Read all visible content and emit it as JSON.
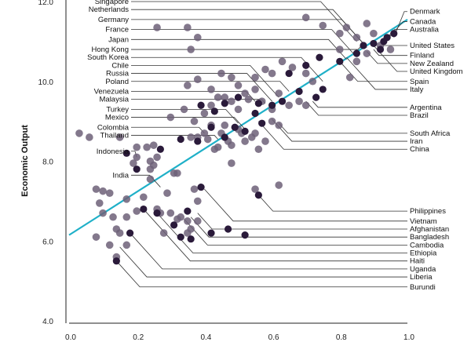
{
  "chart_data": {
    "type": "scatter",
    "title": "",
    "xlabel": "",
    "ylabel": "Economic Output",
    "xlim": [
      0,
      1
    ],
    "ylim": [
      4,
      12
    ],
    "x_ticks": [
      "0.0",
      "0.2",
      "0.4",
      "0.6",
      "0.8",
      "1.0"
    ],
    "y_ticks": [
      "4.0",
      "6.0",
      "8.0",
      "10.0",
      "12.0"
    ],
    "grid": false,
    "colors": {
      "highlight": "#2a1a3a",
      "other": "#6d6078",
      "trend": "#1fb0c8",
      "leader": "#333333"
    },
    "trend_line": {
      "x0": 0,
      "y0": 6.15,
      "x1": 1,
      "y1": 11.55
    },
    "points_other": [
      [
        0.08,
        7.3
      ],
      [
        0.1,
        7.25
      ],
      [
        0.12,
        7.2
      ],
      [
        0.09,
        6.95
      ],
      [
        0.1,
        6.7
      ],
      [
        0.13,
        6.6
      ],
      [
        0.14,
        6.3
      ],
      [
        0.15,
        6.2
      ],
      [
        0.12,
        5.9
      ],
      [
        0.08,
        6.1
      ],
      [
        0.14,
        5.6
      ],
      [
        0.17,
        7.05
      ],
      [
        0.17,
        6.6
      ],
      [
        0.2,
        6.75
      ],
      [
        0.17,
        5.9
      ],
      [
        0.2,
        8.35
      ],
      [
        0.2,
        8.1
      ],
      [
        0.19,
        7.95
      ],
      [
        0.23,
        8.35
      ],
      [
        0.24,
        8.0
      ],
      [
        0.25,
        8.4
      ],
      [
        0.25,
        7.9
      ],
      [
        0.24,
        7.55
      ],
      [
        0.26,
        8.1
      ],
      [
        0.22,
        7.1
      ],
      [
        0.24,
        7.8
      ],
      [
        0.26,
        6.8
      ],
      [
        0.28,
        6.2
      ],
      [
        0.27,
        6.7
      ],
      [
        0.3,
        6.7
      ],
      [
        0.32,
        6.55
      ],
      [
        0.33,
        6.6
      ],
      [
        0.35,
        6.5
      ],
      [
        0.35,
        6.2
      ],
      [
        0.36,
        6.3
      ],
      [
        0.38,
        6.5
      ],
      [
        0.38,
        7.0
      ],
      [
        0.37,
        7.3
      ],
      [
        0.32,
        7.7
      ],
      [
        0.31,
        7.7
      ],
      [
        0.29,
        7.2
      ],
      [
        0.36,
        8.6
      ],
      [
        0.38,
        8.6
      ],
      [
        0.4,
        8.7
      ],
      [
        0.41,
        8.55
      ],
      [
        0.42,
        8.9
      ],
      [
        0.43,
        8.3
      ],
      [
        0.44,
        8.35
      ],
      [
        0.45,
        8.7
      ],
      [
        0.46,
        8.9
      ],
      [
        0.47,
        8.5
      ],
      [
        0.48,
        8.4
      ],
      [
        0.5,
        8.8
      ],
      [
        0.51,
        8.7
      ],
      [
        0.52,
        8.5
      ],
      [
        0.54,
        8.6
      ],
      [
        0.55,
        8.7
      ],
      [
        0.56,
        8.3
      ],
      [
        0.58,
        8.5
      ],
      [
        0.6,
        9.0
      ],
      [
        0.62,
        8.9
      ],
      [
        0.3,
        9.1
      ],
      [
        0.34,
        9.3
      ],
      [
        0.37,
        9.0
      ],
      [
        0.4,
        9.2
      ],
      [
        0.42,
        9.4
      ],
      [
        0.44,
        9.6
      ],
      [
        0.46,
        9.6
      ],
      [
        0.48,
        9.5
      ],
      [
        0.5,
        9.3
      ],
      [
        0.53,
        9.55
      ],
      [
        0.55,
        9.8
      ],
      [
        0.57,
        9.5
      ],
      [
        0.6,
        9.3
      ],
      [
        0.62,
        9.7
      ],
      [
        0.65,
        9.4
      ],
      [
        0.68,
        9.5
      ],
      [
        0.7,
        9.4
      ],
      [
        0.35,
        9.9
      ],
      [
        0.38,
        10.05
      ],
      [
        0.42,
        9.8
      ],
      [
        0.45,
        10.2
      ],
      [
        0.48,
        10.1
      ],
      [
        0.5,
        9.9
      ],
      [
        0.52,
        9.7
      ],
      [
        0.55,
        10.1
      ],
      [
        0.58,
        10.3
      ],
      [
        0.6,
        10.2
      ],
      [
        0.63,
        10.5
      ],
      [
        0.66,
        10.35
      ],
      [
        0.7,
        10.2
      ],
      [
        0.72,
        10.0
      ],
      [
        0.26,
        11.35
      ],
      [
        0.35,
        11.35
      ],
      [
        0.38,
        11.1
      ],
      [
        0.36,
        10.8
      ],
      [
        0.7,
        11.6
      ],
      [
        0.75,
        11.4
      ],
      [
        0.8,
        11.2
      ],
      [
        0.82,
        11.35
      ],
      [
        0.85,
        11.1
      ],
      [
        0.88,
        11.45
      ],
      [
        0.9,
        11.2
      ],
      [
        0.8,
        10.8
      ],
      [
        0.83,
        10.1
      ],
      [
        0.85,
        10.5
      ],
      [
        0.88,
        10.7
      ],
      [
        0.92,
        10.9
      ],
      [
        0.95,
        10.8
      ],
      [
        0.03,
        8.7
      ],
      [
        0.06,
        8.6
      ],
      [
        0.15,
        8.6
      ],
      [
        0.48,
        7.95
      ],
      [
        0.62,
        7.4
      ],
      [
        0.55,
        7.3
      ]
    ],
    "points_highlight": [
      [
        0.17,
        8.2
      ],
      [
        0.2,
        7.8
      ],
      [
        0.27,
        8.3
      ],
      [
        0.33,
        8.55
      ],
      [
        0.38,
        8.5
      ],
      [
        0.42,
        8.85
      ],
      [
        0.46,
        8.6
      ],
      [
        0.49,
        8.85
      ],
      [
        0.52,
        8.75
      ],
      [
        0.57,
        8.95
      ],
      [
        0.39,
        9.4
      ],
      [
        0.43,
        9.25
      ],
      [
        0.46,
        9.45
      ],
      [
        0.5,
        9.6
      ],
      [
        0.56,
        9.45
      ],
      [
        0.63,
        9.5
      ],
      [
        0.68,
        9.75
      ],
      [
        0.73,
        9.6
      ],
      [
        0.75,
        9.8
      ],
      [
        0.55,
        9.2
      ],
      [
        0.6,
        9.4
      ],
      [
        0.65,
        10.2
      ],
      [
        0.7,
        10.4
      ],
      [
        0.74,
        10.6
      ],
      [
        0.8,
        10.5
      ],
      [
        0.85,
        10.7
      ],
      [
        0.87,
        10.9
      ],
      [
        0.9,
        10.95
      ],
      [
        0.92,
        10.8
      ],
      [
        0.93,
        11.0
      ],
      [
        0.94,
        11.1
      ],
      [
        0.96,
        11.2
      ],
      [
        0.22,
        6.8
      ],
      [
        0.26,
        6.7
      ],
      [
        0.31,
        6.4
      ],
      [
        0.33,
        6.1
      ],
      [
        0.36,
        6.05
      ],
      [
        0.42,
        6.2
      ],
      [
        0.47,
        6.3
      ],
      [
        0.52,
        6.15
      ],
      [
        0.14,
        5.5
      ],
      [
        0.39,
        7.35
      ],
      [
        0.35,
        6.75
      ],
      [
        0.56,
        7.15
      ],
      [
        0.18,
        6.2
      ]
    ],
    "labels_left": [
      {
        "name": "Singapore",
        "y": 12.0,
        "px": 0.85,
        "py": 11.0
      },
      {
        "name": "Netherlands",
        "y": 11.8,
        "px": 0.87,
        "py": 10.95
      },
      {
        "name": "Germany",
        "y": 11.55,
        "px": 0.88,
        "py": 10.85
      },
      {
        "name": "France",
        "y": 11.3,
        "px": 0.84,
        "py": 10.7
      },
      {
        "name": "Japan",
        "y": 11.05,
        "px": 0.82,
        "py": 10.55
      },
      {
        "name": "Hong Kong",
        "y": 10.8,
        "px": 0.87,
        "py": 10.95
      },
      {
        "name": "South Korea",
        "y": 10.6,
        "px": 0.75,
        "py": 10.0
      },
      {
        "name": "Chile",
        "y": 10.4,
        "px": 0.62,
        "py": 9.6
      },
      {
        "name": "Russia",
        "y": 10.2,
        "px": 0.6,
        "py": 9.5
      },
      {
        "name": "Poland",
        "y": 10.0,
        "px": 0.65,
        "py": 9.75
      },
      {
        "name": "Venezuela",
        "y": 9.75,
        "px": 0.55,
        "py": 9.5
      },
      {
        "name": "Malaysia",
        "y": 9.55,
        "px": 0.58,
        "py": 9.45
      },
      {
        "name": "Turkey",
        "y": 9.3,
        "px": 0.5,
        "py": 8.95
      },
      {
        "name": "Mexico",
        "y": 9.1,
        "px": 0.52,
        "py": 8.8
      },
      {
        "name": "Colombia",
        "y": 8.85,
        "px": 0.4,
        "py": 8.7
      },
      {
        "name": "Thailand",
        "y": 8.65,
        "px": 0.44,
        "py": 8.55
      },
      {
        "name": "Indonesia",
        "y": 8.25,
        "px": 0.2,
        "py": 8.1
      },
      {
        "name": "India",
        "y": 7.65,
        "px": 0.27,
        "py": 7.35
      }
    ],
    "labels_right": [
      {
        "name": "Denmark",
        "y": 11.75,
        "px": 0.96,
        "py": 11.1
      },
      {
        "name": "Canada",
        "y": 11.5,
        "px": 0.94,
        "py": 11.05
      },
      {
        "name": "Australia",
        "y": 11.3,
        "px": 0.93,
        "py": 11.0
      },
      {
        "name": "United States",
        "y": 10.9,
        "px": 0.92,
        "py": 10.9
      },
      {
        "name": "Finland",
        "y": 10.65,
        "px": 0.9,
        "py": 10.8
      },
      {
        "name": "New Zealand",
        "y": 10.45,
        "px": 0.88,
        "py": 10.75
      },
      {
        "name": "United Kingdom",
        "y": 10.25,
        "px": 0.9,
        "py": 10.9
      },
      {
        "name": "Spain",
        "y": 10.0,
        "px": 0.8,
        "py": 10.5
      },
      {
        "name": "Italy",
        "y": 9.8,
        "px": 0.82,
        "py": 10.6
      },
      {
        "name": "Argentina",
        "y": 9.35,
        "px": 0.72,
        "py": 9.5
      },
      {
        "name": "Brazil",
        "y": 9.15,
        "px": 0.7,
        "py": 9.5
      },
      {
        "name": "South Africa",
        "y": 8.7,
        "px": 0.62,
        "py": 8.95
      },
      {
        "name": "Iran",
        "y": 8.5,
        "px": 0.6,
        "py": 9.05
      },
      {
        "name": "China",
        "y": 8.3,
        "px": 0.56,
        "py": 9.0
      },
      {
        "name": "Philippines",
        "y": 6.75,
        "px": 0.56,
        "py": 7.15
      },
      {
        "name": "Vietnam",
        "y": 6.5,
        "px": 0.4,
        "py": 7.3
      },
      {
        "name": "Afghanistan",
        "y": 6.3,
        "px": 0.38,
        "py": 6.7
      },
      {
        "name": "Bangladesh",
        "y": 6.1,
        "px": 0.36,
        "py": 6.6
      },
      {
        "name": "Cambodia",
        "y": 5.9,
        "px": 0.34,
        "py": 6.55
      },
      {
        "name": "Ethiopia",
        "y": 5.7,
        "px": 0.26,
        "py": 6.7
      },
      {
        "name": "Haiti",
        "y": 5.5,
        "px": 0.22,
        "py": 6.8
      },
      {
        "name": "Uganda",
        "y": 5.3,
        "px": 0.18,
        "py": 6.2
      },
      {
        "name": "Liberia",
        "y": 5.1,
        "px": 0.15,
        "py": 5.85
      },
      {
        "name": "Burundi",
        "y": 4.85,
        "px": 0.14,
        "py": 5.5
      }
    ]
  }
}
